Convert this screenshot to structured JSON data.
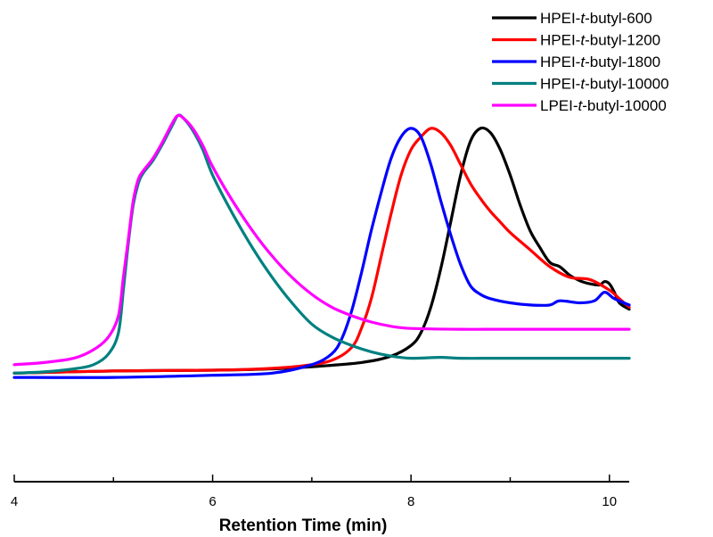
{
  "chart_data": {
    "type": "line",
    "xlabel": "Retention Time (min)",
    "ylabel": "",
    "xlim": [
      4,
      10.2
    ],
    "ylim": [
      -1,
      10
    ],
    "x_ticks": [
      4,
      6,
      8,
      10
    ],
    "x_tick_labels": [
      "4",
      "6",
      "8",
      "10"
    ],
    "grid": false,
    "legend_position": "top-right",
    "series": [
      {
        "name": "HPEI-t-butyl-600",
        "legend_label": {
          "pre": "HPEI-",
          "em": "t",
          "post": "-butyl-600"
        },
        "color": "#000000",
        "points": [
          [
            4.0,
            1.55
          ],
          [
            5.0,
            1.6
          ],
          [
            6.0,
            1.62
          ],
          [
            6.6,
            1.65
          ],
          [
            7.0,
            1.7
          ],
          [
            7.5,
            1.8
          ],
          [
            7.8,
            1.95
          ],
          [
            8.0,
            2.2
          ],
          [
            8.1,
            2.5
          ],
          [
            8.2,
            3.1
          ],
          [
            8.3,
            4.0
          ],
          [
            8.4,
            5.1
          ],
          [
            8.5,
            6.2
          ],
          [
            8.6,
            7.0
          ],
          [
            8.7,
            7.3
          ],
          [
            8.8,
            7.2
          ],
          [
            8.9,
            6.8
          ],
          [
            9.0,
            6.2
          ],
          [
            9.1,
            5.5
          ],
          [
            9.2,
            4.9
          ],
          [
            9.3,
            4.5
          ],
          [
            9.4,
            4.15
          ],
          [
            9.5,
            4.05
          ],
          [
            9.6,
            3.85
          ],
          [
            9.7,
            3.72
          ],
          [
            9.8,
            3.65
          ],
          [
            9.9,
            3.62
          ],
          [
            9.95,
            3.7
          ],
          [
            10.0,
            3.65
          ],
          [
            10.05,
            3.45
          ],
          [
            10.1,
            3.2
          ],
          [
            10.2,
            3.05
          ]
        ]
      },
      {
        "name": "HPEI-t-butyl-1200",
        "legend_label": {
          "pre": "HPEI-",
          "em": "t",
          "post": "-butyl-1200"
        },
        "color": "#ff0000",
        "points": [
          [
            4.0,
            1.55
          ],
          [
            5.0,
            1.6
          ],
          [
            6.0,
            1.62
          ],
          [
            6.5,
            1.65
          ],
          [
            6.9,
            1.72
          ],
          [
            7.2,
            1.85
          ],
          [
            7.4,
            2.15
          ],
          [
            7.5,
            2.6
          ],
          [
            7.6,
            3.3
          ],
          [
            7.7,
            4.3
          ],
          [
            7.8,
            5.3
          ],
          [
            7.9,
            6.2
          ],
          [
            8.0,
            6.8
          ],
          [
            8.1,
            7.1
          ],
          [
            8.2,
            7.3
          ],
          [
            8.3,
            7.2
          ],
          [
            8.4,
            6.9
          ],
          [
            8.5,
            6.45
          ],
          [
            8.6,
            6.0
          ],
          [
            8.7,
            5.65
          ],
          [
            8.8,
            5.35
          ],
          [
            8.9,
            5.1
          ],
          [
            9.0,
            4.85
          ],
          [
            9.2,
            4.45
          ],
          [
            9.4,
            4.05
          ],
          [
            9.6,
            3.8
          ],
          [
            9.8,
            3.75
          ],
          [
            10.0,
            3.5
          ],
          [
            10.1,
            3.3
          ],
          [
            10.2,
            3.1
          ]
        ]
      },
      {
        "name": "HPEI-t-butyl-1800",
        "legend_label": {
          "pre": "HPEI-",
          "em": "t",
          "post": "-butyl-1800"
        },
        "color": "#0000ff",
        "points": [
          [
            4.0,
            1.45
          ],
          [
            5.0,
            1.45
          ],
          [
            6.0,
            1.5
          ],
          [
            6.6,
            1.55
          ],
          [
            7.0,
            1.75
          ],
          [
            7.2,
            2.0
          ],
          [
            7.3,
            2.35
          ],
          [
            7.4,
            3.0
          ],
          [
            7.5,
            3.9
          ],
          [
            7.6,
            4.9
          ],
          [
            7.7,
            5.8
          ],
          [
            7.8,
            6.6
          ],
          [
            7.9,
            7.1
          ],
          [
            8.0,
            7.3
          ],
          [
            8.1,
            7.1
          ],
          [
            8.2,
            6.45
          ],
          [
            8.3,
            5.6
          ],
          [
            8.4,
            4.8
          ],
          [
            8.5,
            4.1
          ],
          [
            8.6,
            3.6
          ],
          [
            8.7,
            3.4
          ],
          [
            8.8,
            3.3
          ],
          [
            9.0,
            3.2
          ],
          [
            9.2,
            3.15
          ],
          [
            9.4,
            3.15
          ],
          [
            9.5,
            3.25
          ],
          [
            9.7,
            3.2
          ],
          [
            9.85,
            3.25
          ],
          [
            9.95,
            3.45
          ],
          [
            10.05,
            3.3
          ],
          [
            10.2,
            3.15
          ]
        ]
      },
      {
        "name": "HPEI-t-butyl-10000",
        "legend_label": {
          "pre": "HPEI-",
          "em": "t",
          "post": "-butyl-10000"
        },
        "color": "#008080",
        "points": [
          [
            4.0,
            1.55
          ],
          [
            4.3,
            1.58
          ],
          [
            4.6,
            1.65
          ],
          [
            4.8,
            1.75
          ],
          [
            4.95,
            2.0
          ],
          [
            5.05,
            2.5
          ],
          [
            5.1,
            3.5
          ],
          [
            5.15,
            4.6
          ],
          [
            5.2,
            5.5
          ],
          [
            5.25,
            6.0
          ],
          [
            5.3,
            6.25
          ],
          [
            5.4,
            6.55
          ],
          [
            5.5,
            6.95
          ],
          [
            5.6,
            7.4
          ],
          [
            5.65,
            7.6
          ],
          [
            5.7,
            7.55
          ],
          [
            5.8,
            7.25
          ],
          [
            5.9,
            6.8
          ],
          [
            6.0,
            6.2
          ],
          [
            6.2,
            5.3
          ],
          [
            6.4,
            4.5
          ],
          [
            6.6,
            3.8
          ],
          [
            6.8,
            3.2
          ],
          [
            7.0,
            2.7
          ],
          [
            7.2,
            2.4
          ],
          [
            7.4,
            2.2
          ],
          [
            7.6,
            2.05
          ],
          [
            7.8,
            1.95
          ],
          [
            8.0,
            1.9
          ],
          [
            8.3,
            1.92
          ],
          [
            8.5,
            1.9
          ],
          [
            9.0,
            1.9
          ],
          [
            10.2,
            1.9
          ]
        ]
      },
      {
        "name": "LPEI-t-butyl-10000",
        "legend_label": {
          "pre": "LPEI-",
          "em": "t",
          "post": "-butyl-10000"
        },
        "color": "#ff00ff",
        "points": [
          [
            4.0,
            1.75
          ],
          [
            4.3,
            1.8
          ],
          [
            4.6,
            1.9
          ],
          [
            4.8,
            2.1
          ],
          [
            4.95,
            2.4
          ],
          [
            5.05,
            2.9
          ],
          [
            5.1,
            3.8
          ],
          [
            5.15,
            4.7
          ],
          [
            5.2,
            5.6
          ],
          [
            5.25,
            6.1
          ],
          [
            5.3,
            6.3
          ],
          [
            5.4,
            6.6
          ],
          [
            5.5,
            7.0
          ],
          [
            5.6,
            7.45
          ],
          [
            5.65,
            7.6
          ],
          [
            5.7,
            7.55
          ],
          [
            5.8,
            7.3
          ],
          [
            5.9,
            6.9
          ],
          [
            6.0,
            6.4
          ],
          [
            6.2,
            5.6
          ],
          [
            6.4,
            4.9
          ],
          [
            6.6,
            4.3
          ],
          [
            6.8,
            3.8
          ],
          [
            7.0,
            3.4
          ],
          [
            7.2,
            3.1
          ],
          [
            7.4,
            2.9
          ],
          [
            7.6,
            2.75
          ],
          [
            7.8,
            2.65
          ],
          [
            8.0,
            2.6
          ],
          [
            8.5,
            2.58
          ],
          [
            9.0,
            2.58
          ],
          [
            10.2,
            2.58
          ]
        ]
      }
    ]
  }
}
